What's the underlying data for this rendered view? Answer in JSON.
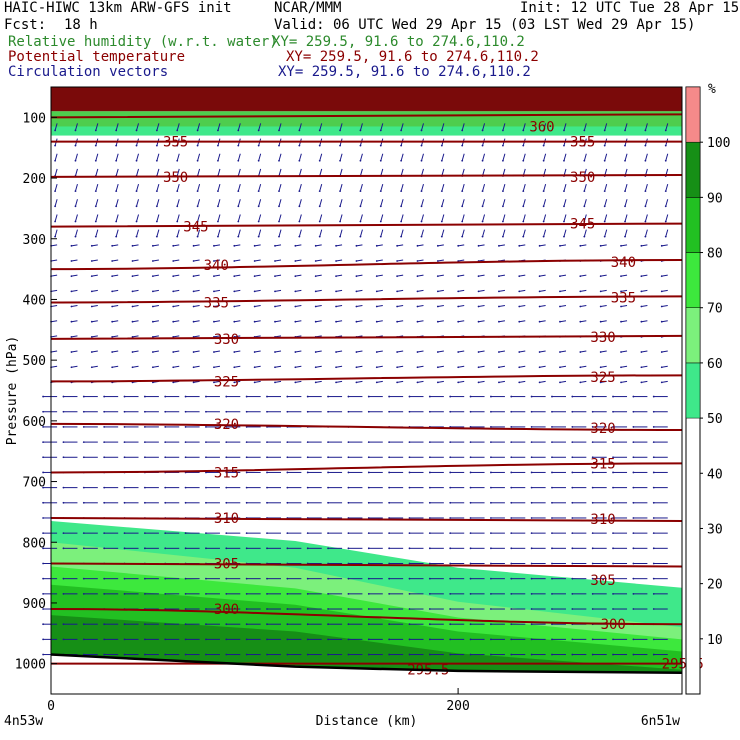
{
  "header": {
    "model": "HAIC-HIWC 13km ARW-GFS init",
    "org": "NCAR/MMM",
    "init": "Init: 12 UTC Tue 28 Apr 15",
    "fcst_label": "Fcst:",
    "fcst_value": "18 h",
    "valid": "Valid: 06 UTC Wed 29 Apr 15 (03 LST Wed 29 Apr 15)",
    "fields": [
      {
        "name": "Relative humidity (w.r.t. water)",
        "xy": "XY= 259.5, 91.6 to 274.6,110.2",
        "color": "#2c8a2c"
      },
      {
        "name": "Potential temperature",
        "xy": "XY= 259.5, 91.6 to 274.6,110.2",
        "color": "#8b0000"
      },
      {
        "name": "Circulation vectors",
        "xy": "XY= 259.5, 91.6 to 274.6,110.2",
        "color": "#1a1a8c"
      }
    ]
  },
  "chart_data": {
    "type": "heatmap",
    "title": "Vertical cross-section",
    "xlabel": "Distance (km)",
    "ylabel": "Pressure (hPa)",
    "x_ticks": [
      0,
      200
    ],
    "x_end_labels": [
      "4n53w",
      "6n51w"
    ],
    "xlim": [
      0,
      310
    ],
    "y_ticks": [
      100,
      200,
      300,
      400,
      500,
      600,
      700,
      800,
      900,
      1000
    ],
    "ylim": [
      1050,
      50
    ],
    "colorbar": {
      "unit": "%",
      "ticks": [
        10,
        20,
        30,
        40,
        50,
        60,
        70,
        80,
        90,
        100
      ],
      "bins": [
        {
          "from": 50,
          "to": 60,
          "color": "#3fe88a"
        },
        {
          "from": 60,
          "to": 70,
          "color": "#7cf07c"
        },
        {
          "from": 70,
          "to": 80,
          "color": "#3de83d"
        },
        {
          "from": 80,
          "to": 90,
          "color": "#22c022"
        },
        {
          "from": 90,
          "to": 100,
          "color": "#168f16"
        },
        {
          "from": 100,
          "to": 110,
          "color": "#f58a8a"
        }
      ]
    },
    "theta_contours": [
      {
        "value": 360,
        "p": [
          100,
          95
        ]
      },
      {
        "value": 355,
        "p": [
          140,
          140
        ]
      },
      {
        "value": 350,
        "p": [
          198,
          195
        ]
      },
      {
        "value": 345,
        "p": [
          280,
          275
        ]
      },
      {
        "value": 340,
        "p": [
          350,
          335
        ]
      },
      {
        "value": 335,
        "p": [
          405,
          395
        ]
      },
      {
        "value": 330,
        "p": [
          465,
          460
        ]
      },
      {
        "value": 325,
        "p": [
          535,
          525
        ]
      },
      {
        "value": 320,
        "p": [
          605,
          615
        ]
      },
      {
        "value": 315,
        "p": [
          685,
          670
        ]
      },
      {
        "value": 310,
        "p": [
          760,
          765
        ]
      },
      {
        "value": 305,
        "p": [
          835,
          840
        ]
      },
      {
        "value": 300,
        "p": [
          910,
          935
        ]
      },
      {
        "value": 295,
        "p": [
          1000,
          1000
        ]
      }
    ],
    "theta_labels": [
      {
        "value": 360,
        "x": 235,
        "p": 115
      },
      {
        "value": 355,
        "x": 55,
        "p": 140
      },
      {
        "value": 355,
        "x": 255,
        "p": 140
      },
      {
        "value": 350,
        "x": 55,
        "p": 198
      },
      {
        "value": 350,
        "x": 255,
        "p": 198
      },
      {
        "value": 345,
        "x": 65,
        "p": 280
      },
      {
        "value": 345,
        "x": 255,
        "p": 275
      },
      {
        "value": 340,
        "x": 75,
        "p": 343
      },
      {
        "value": 340,
        "x": 275,
        "p": 338
      },
      {
        "value": 335,
        "x": 75,
        "p": 405
      },
      {
        "value": 335,
        "x": 275,
        "p": 397
      },
      {
        "value": 330,
        "x": 80,
        "p": 465
      },
      {
        "value": 330,
        "x": 265,
        "p": 462
      },
      {
        "value": 325,
        "x": 80,
        "p": 535
      },
      {
        "value": 325,
        "x": 265,
        "p": 528
      },
      {
        "value": 320,
        "x": 80,
        "p": 605
      },
      {
        "value": 320,
        "x": 265,
        "p": 612
      },
      {
        "value": 315,
        "x": 80,
        "p": 685
      },
      {
        "value": 315,
        "x": 265,
        "p": 670
      },
      {
        "value": 310,
        "x": 80,
        "p": 760
      },
      {
        "value": 310,
        "x": 265,
        "p": 762
      },
      {
        "value": 305,
        "x": 80,
        "p": 835
      },
      {
        "value": 305,
        "x": 265,
        "p": 862
      },
      {
        "value": 300,
        "x": 80,
        "p": 910
      },
      {
        "value": 300,
        "x": 270,
        "p": 935
      },
      {
        "value": 295.5,
        "x": 175,
        "p": 1010
      },
      {
        "value": 295.5,
        "x": 300,
        "p": 1000
      }
    ],
    "theta_label_text": [
      "360",
      "355",
      "355",
      "350",
      "350",
      "345",
      "345",
      "340",
      "340",
      "335",
      "335",
      "330",
      "330",
      "325",
      "325",
      "320",
      "320",
      "315",
      "315",
      "310",
      "310",
      "305",
      "305",
      "300",
      "300",
      "295.5",
      "295.5"
    ],
    "rh_regions": [
      {
        "level": "50-60",
        "p_top_left": 765,
        "p_top_right": 875
      },
      {
        "level": "60-70",
        "p_top_left": 800,
        "p_top_right": 940
      },
      {
        "level": "70-80",
        "p_top_left": 840,
        "p_top_right": 960
      },
      {
        "level": "80-90",
        "p_top_left": 870,
        "p_top_right": 980
      },
      {
        "level": "90-100",
        "p_top_left": 920,
        "p_top_right": 1010
      }
    ],
    "saturated_top_p": [
      50,
      90
    ],
    "vectors": "mostly westward (leftward) below 550 hPa; small downward arrows aloft"
  }
}
